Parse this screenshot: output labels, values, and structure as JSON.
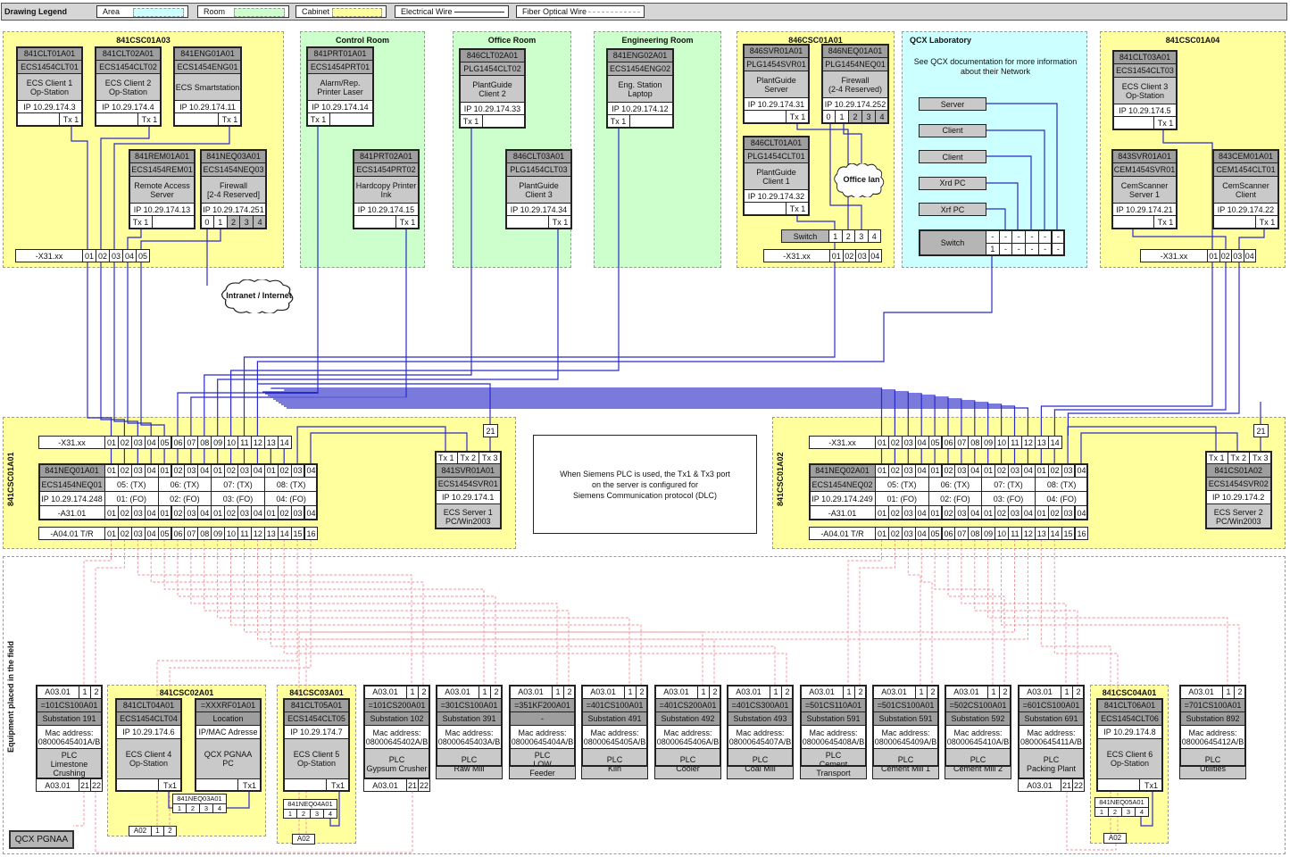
{
  "legend": {
    "title": "Drawing Legend",
    "items": [
      {
        "label": "Area",
        "color": "#ccffff"
      },
      {
        "label": "Room",
        "color": "#ccffcc"
      },
      {
        "label": "Cabinet",
        "color": "#ffff9e"
      },
      {
        "label": "Electrical Wire",
        "color": "#1a1aa8"
      },
      {
        "label": "Fiber Optical Wire",
        "color": "#f08c96"
      }
    ]
  },
  "colors": {
    "electrical": "#2b2bc8",
    "fiber": "#f0909a",
    "cabinet": "#ffff9e",
    "room": "#ccffcc",
    "area": "#ccffff"
  },
  "zones": [
    {
      "title": "841CSC01A03",
      "kind": "cabinet"
    },
    {
      "title": "Control Room",
      "kind": "room"
    },
    {
      "title": "Office Room",
      "kind": "room"
    },
    {
      "title": "Engineering Room",
      "kind": "room"
    },
    {
      "title": "846CSC01A01",
      "kind": "cabinet"
    },
    {
      "title": "QCX Laboratory",
      "kind": "area"
    },
    {
      "title": "841CSC01A04",
      "kind": "cabinet"
    },
    {
      "title": "841CSC01A01",
      "kind": "cabinet"
    },
    {
      "title": "841CSC01A02",
      "kind": "cabinet"
    },
    {
      "title": "Equipment placed in the field",
      "kind": "field"
    },
    {
      "title": "841CSC02A01",
      "kind": "cabinet"
    },
    {
      "title": "841CSC03A01",
      "kind": "cabinet"
    },
    {
      "title": "841CSC04A01",
      "kind": "cabinet"
    }
  ],
  "top_devices": [
    {
      "id": "841CLT01A01",
      "name": "ECS1454CLT01",
      "desc": "ECS Client 1\nOp-Station",
      "ip": "IP 10.29.174.3",
      "tx": "Tx 1"
    },
    {
      "id": "841CLT02A01",
      "name": "ECS1454CLT02",
      "desc": "ECS Client 2\nOp-Station",
      "ip": "IP 10.29.174.4",
      "tx": "Tx 1"
    },
    {
      "id": "841ENG01A01",
      "name": "ECS1454ENG01",
      "desc": "ECS Smartstation",
      "ip": "IP 10.29.174.11",
      "tx": "Tx 1"
    },
    {
      "id": "841REM01A01",
      "name": "ECS1454REM01",
      "desc": "Remote Access\nServer",
      "ip": "IP 10.29.174.13",
      "tx": "Tx 1"
    },
    {
      "id": "841NEQ03A01",
      "name": "ECS1454NEQ03",
      "desc": "Firewall\n[2-4 Reserved]",
      "ip": "IP 10.29.174.251",
      "ports": [
        "0",
        "1",
        "2",
        "3",
        "4"
      ]
    },
    {
      "id": "841PRT01A01",
      "name": "ECS1454PRT01",
      "desc": "Alarm/Rep.\nPrinter Laser",
      "ip": "IP 10.29.174.14",
      "tx": "Tx 1"
    },
    {
      "id": "841PRT02A01",
      "name": "ECS1454PRT02",
      "desc": "Hardcopy Printer\nInk",
      "ip": "IP 10.29.174.15",
      "tx": "Tx 1"
    },
    {
      "id": "846CLT02A01",
      "name": "PLG1454CLT02",
      "desc": "PlantGuide\nClient 2",
      "ip": "IP 10.29.174.33",
      "tx": "Tx 1"
    },
    {
      "id": "846CLT03A01",
      "name": "PLG1454CLT03",
      "desc": "PlantGuide\nClient 3",
      "ip": "IP 10.29.174.34",
      "tx": "Tx 1"
    },
    {
      "id": "841ENG02A01",
      "name": "ECS1454ENG02",
      "desc": "Eng. Station\nLaptop",
      "ip": "IP 10.29.174.12",
      "tx": "Tx 1"
    },
    {
      "id": "846SVR01A01",
      "name": "PLG1454SVR01",
      "desc": "PlantGuide\nServer",
      "ip": "IP 10.29.174.31",
      "tx": "Tx 1"
    },
    {
      "id": "846NEQ01A01",
      "name": "PLG1454NEQ01",
      "desc": "Firewall\n(2-4 Reserved)",
      "ip": "IP 10.29.174.252",
      "ports": [
        "0",
        "1",
        "2",
        "3",
        "4"
      ]
    },
    {
      "id": "846CLT01A01",
      "name": "PLG1454CLT01",
      "desc": "PlantGuide\nClient 1",
      "ip": "IP 10.29.174.32",
      "tx": "Tx 1"
    },
    {
      "id": "841CLT03A01",
      "name": "ECS1454CLT03",
      "desc": "ECS Client 3\nOp-Station",
      "ip": "IP 10.29.174.5",
      "tx": "Tx 1"
    },
    {
      "id": "843SVR01A01",
      "name": "CEM1454SVR01",
      "desc": "CemScanner\nServer 1",
      "ip": "IP 10.29.174.21",
      "tx": "Tx 1"
    },
    {
      "id": "843CEM01A01",
      "name": "CEM1454CLT01",
      "desc": "CemScanner\nClient",
      "ip": "IP 10.29.174.22",
      "tx": "Tx 1"
    }
  ],
  "top_strips": [
    {
      "label": "-X31.xx",
      "ports": [
        "01",
        "02",
        "03",
        "04",
        "05"
      ]
    },
    {
      "label": "-X31.xx",
      "ports": [
        "01",
        "02",
        "03",
        "04"
      ]
    },
    {
      "label": "-X31.xx",
      "ports": [
        "01",
        "02",
        "03",
        "04"
      ]
    }
  ],
  "switch_846": {
    "label": "Switch",
    "ports": [
      "1",
      "2",
      "3",
      "4"
    ]
  },
  "clouds": {
    "intranet": "Intranet / Internet",
    "office_lan": "Office lan"
  },
  "qcx": {
    "note": "See QCX documentation for more information\nabout their Network",
    "devices": [
      "Server",
      "Client",
      "Client",
      "Xrd PC",
      "Xrf PC"
    ],
    "switch_label": "Switch",
    "switch_rows": [
      [
        "-",
        "-",
        "-",
        "-",
        "-",
        "-"
      ],
      [
        "1",
        "-",
        "-",
        "-",
        "-",
        "-"
      ]
    ]
  },
  "main_cabinets": [
    {
      "x31": {
        "label": "-X31.xx",
        "ports": [
          "01",
          "02",
          "03",
          "04",
          "05",
          "06",
          "07",
          "08",
          "09",
          "10",
          "11",
          "12",
          "13",
          "14"
        ]
      },
      "neq": {
        "id": "841NEQ01A01",
        "name": "ECS1454NEQ01",
        "ip": "IP 10.29.174.248",
        "ports": [
          "01",
          "02",
          "03",
          "04",
          "01",
          "02",
          "03",
          "04",
          "01",
          "02",
          "03",
          "04",
          "01",
          "02",
          "03",
          "04"
        ],
        "tx": [
          "05: (TX)",
          "06: (TX)",
          "07: (TX)",
          "08: (TX)"
        ],
        "fo": [
          "01: (FO)",
          "02: (FO)",
          "03: (FO)",
          "04: (FO)"
        ],
        "a31_label": "-A31.01"
      },
      "a04": {
        "label": "-A04.01 T/R",
        "ports": [
          "01",
          "02",
          "03",
          "04",
          "05",
          "06",
          "07",
          "08",
          "09",
          "10",
          "11",
          "12",
          "13",
          "14",
          "15",
          "16"
        ]
      },
      "port21": "21",
      "server": {
        "tx": [
          "Tx 1",
          "Tx 2",
          "Tx 3"
        ],
        "id": "841SVR01A01",
        "name": "ECS1454SVR01",
        "ip": "IP 10.29.174.1",
        "desc": "ECS Server 1\nPC/Win2003"
      }
    },
    {
      "x31": {
        "label": "-X31.xx",
        "ports": [
          "01",
          "02",
          "03",
          "04",
          "05",
          "06",
          "07",
          "08",
          "09",
          "10",
          "11",
          "12",
          "13",
          "14"
        ]
      },
      "neq": {
        "id": "841NEQ02A01",
        "name": "ECS1454NEQ02",
        "ip": "IP 10.29.174.249",
        "ports": [
          "01",
          "02",
          "03",
          "04",
          "01",
          "02",
          "03",
          "04",
          "01",
          "02",
          "03",
          "04",
          "01",
          "02",
          "03",
          "04"
        ],
        "tx": [
          "05: (TX)",
          "06: (TX)",
          "07: (TX)",
          "08: (TX)"
        ],
        "fo": [
          "01: (FO)",
          "02: (FO)",
          "03: (FO)",
          "04: (FO)"
        ],
        "a31_label": "-A31.01"
      },
      "a04": {
        "label": "-A04.01 T/R",
        "ports": [
          "01",
          "02",
          "03",
          "04",
          "05",
          "06",
          "07",
          "08",
          "09",
          "10",
          "11",
          "12",
          "13",
          "14",
          "15",
          "16"
        ]
      },
      "port21": "21",
      "server": {
        "tx": [
          "Tx 1",
          "Tx 2",
          "Tx 3"
        ],
        "id": "841CS01A02",
        "name": "ECS1454SVR02",
        "ip": "IP 10.29.174.2",
        "desc": "ECS Server 2\nPC/Win2003"
      }
    }
  ],
  "note": "When Siemens PLC is used, the Tx1 & Tx3 port\non the server is configured for\nSiemens Communication protocol (DLC)",
  "plcs": [
    {
      "loc": "A03.01",
      "p1": "1",
      "p2": "2",
      "id": "=101CS100A01",
      "name": "Substation 191",
      "mac": "Mac address:\n08000645401A/B",
      "desc": "PLC\nLimestone\nCrushing",
      "footer": {
        "loc": "A03.01",
        "p1": "21",
        "p2": "22"
      }
    },
    {
      "loc": "A03.01",
      "p1": "1",
      "p2": "2",
      "id": "=101CS200A01",
      "name": "Substation 102",
      "mac": "Mac address:\n08000645402A/B",
      "desc": "PLC\nGypsum Crusher",
      "footer": {
        "loc": "A03.01",
        "p1": "21",
        "p2": "22"
      }
    },
    {
      "loc": "A03.01",
      "p1": "1",
      "p2": "2",
      "id": "=301CS100A01",
      "name": "Substation 391",
      "mac": "Mac address:\n08000645403A/B",
      "desc": "PLC\nRaw Mill"
    },
    {
      "loc": "A03.01",
      "p1": "1",
      "p2": "2",
      "id": "=351KF200A01",
      "name": "-",
      "mac": "Mac address:\n08000645404A/B",
      "desc": "PLC\nLOW\nFeeder"
    },
    {
      "loc": "A03.01",
      "p1": "1",
      "p2": "2",
      "id": "=401CS100A01",
      "name": "Substation 491",
      "mac": "Mac address:\n08000645405A/B",
      "desc": "PLC\nKiln"
    },
    {
      "loc": "A03.01",
      "p1": "1",
      "p2": "2",
      "id": "=401CS200A01",
      "name": "Substation 492",
      "mac": "Mac address:\n08000645406A/B",
      "desc": "PLC\nCooler"
    },
    {
      "loc": "A03.01",
      "p1": "1",
      "p2": "2",
      "id": "=401CS300A01",
      "name": "Substation 493",
      "mac": "Mac address:\n08000645407A/B",
      "desc": "PLC\nCoal Mill"
    },
    {
      "loc": "A03.01",
      "p1": "1",
      "p2": "2",
      "id": "=501CS110A01",
      "name": "Substation 591",
      "mac": "Mac address:\n08000645408A/B",
      "desc": "PLC\nCement\nTransport"
    },
    {
      "loc": "A03.01",
      "p1": "1",
      "p2": "2",
      "id": "=501CS100A01",
      "name": "Substation 591",
      "mac": "Mac address:\n08000645409A/B",
      "desc": "PLC\nCement Mill 1"
    },
    {
      "loc": "A03.01",
      "p1": "1",
      "p2": "2",
      "id": "=502CS100A01",
      "name": "Substation 592",
      "mac": "Mac address:\n08000645410A/B",
      "desc": "PLC\nCement Mill 2"
    },
    {
      "loc": "A03.01",
      "p1": "1",
      "p2": "2",
      "id": "=601CS100A01",
      "name": "Substation 691",
      "mac": "Mac address:\n08000645411A/B",
      "desc": "PLC\nPacking Plant",
      "footer": {
        "loc": "A03.01",
        "p1": "21",
        "p2": "22"
      }
    },
    {
      "loc": "A03.01",
      "p1": "1",
      "p2": "2",
      "id": "=701CS100A01",
      "name": "Substation 892",
      "mac": "Mac address:\n08000645412A/B",
      "desc": "PLC\nUtilities"
    }
  ],
  "field_clients": [
    {
      "id": "841CLT04A01",
      "name": "ECS1454CLT04",
      "ip": "IP 10.29.174.6",
      "desc": "ECS Client 4\nOp-Station",
      "tx": "Tx1"
    },
    {
      "id": "=XXXRF01A01",
      "name": "Location",
      "ip": "IP/MAC Adresse",
      "desc": "QCX PGNAA\nPC",
      "tx": "Tx1"
    },
    {
      "id": "841CLT05A01",
      "name": "ECS1454CLT05",
      "ip": "IP 10.29.174.7",
      "desc": "ECS Client 5\nOp-Station",
      "tx": "Tx1"
    },
    {
      "id": "841CLT06A01",
      "name": "ECS1454CLT06",
      "ip": "IP 10.29.174.8",
      "desc": "ECS Client 6\nOp-Station",
      "tx": "Tx1"
    }
  ],
  "field_switches": [
    {
      "id": "841NEQ03A01",
      "ports": [
        "1",
        "2",
        "3",
        "4"
      ]
    },
    {
      "id": "841NEQ04A01",
      "ports": [
        "1",
        "2",
        "3",
        "4"
      ]
    },
    {
      "id": "841NEQ05A01",
      "ports": [
        "1",
        "2",
        "3",
        "4"
      ]
    }
  ],
  "a02_blocks": [
    {
      "label": "A02",
      "ports": [
        "1",
        "2"
      ]
    },
    {
      "label": "A02",
      "ports": []
    },
    {
      "label": "A02",
      "ports": []
    }
  ],
  "qcx_pgnaa": "QCX PGNAA"
}
